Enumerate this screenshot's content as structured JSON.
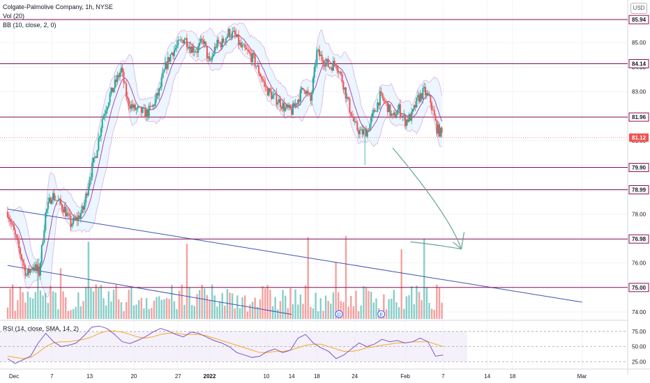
{
  "header": {
    "title": "Colgate-Palmolive Company, 1h, NYSE",
    "vol": "Vol (20)",
    "bb": "BB (10, close, 2, 0)"
  },
  "currency_button": "USD",
  "rsi_label": "RSI (14, close, SMA, 14, 2)",
  "colors": {
    "up": "#26a69a",
    "down": "#ef5350",
    "level_line": "#880e4f",
    "trendline": "#3f51b5",
    "arrow": "#5fa58e",
    "bb_band": "#e1bee7",
    "bb_fill": "#e3f2fd",
    "rsi_line": "#7e57c2",
    "rsi_sma": "#f9a825",
    "price_tag": "#ef5350"
  },
  "chart_data": {
    "type": "candlestick",
    "symbol": "Colgate-Palmolive Company",
    "interval": "1h",
    "exchange": "NYSE",
    "y_axis": {
      "range": [
        73.8,
        86.4
      ],
      "ticks": [
        "85.00",
        "84.00",
        "83.00",
        "82.00",
        "81.00",
        "80.00",
        "79.00",
        "78.00",
        "77.00",
        "76.00",
        "75.00",
        "74.00"
      ]
    },
    "x_axis": {
      "ticks": [
        {
          "label": "Dec",
          "day": 0
        },
        {
          "label": "7",
          "day": 6
        },
        {
          "label": "13",
          "day": 12
        },
        {
          "label": "20",
          "day": 19
        },
        {
          "label": "27",
          "day": 26
        },
        {
          "label": "2022",
          "day": 31
        },
        {
          "label": "10",
          "day": 40
        },
        {
          "label": "14",
          "day": 44
        },
        {
          "label": "18",
          "day": 48
        },
        {
          "label": "24",
          "day": 54
        },
        {
          "label": "Feb",
          "day": 62
        },
        {
          "label": "7",
          "day": 68
        },
        {
          "label": "14",
          "day": 75
        },
        {
          "label": "18",
          "day": 79
        },
        {
          "label": "Mar",
          "day": 90
        }
      ]
    },
    "horizontal_levels": [
      "85.94",
      "84.14",
      "81.96",
      "79.90",
      "78.99",
      "76.98",
      "75.00"
    ],
    "current_price": "81.12",
    "trendlines": [
      {
        "from": [
          -1,
          78.2
        ],
        "to": [
          90,
          74.4
        ]
      },
      {
        "from": [
          -1,
          75.9
        ],
        "to": [
          44,
          73.9
        ]
      }
    ],
    "arrow": {
      "from": [
        60,
        80.7
      ],
      "to": [
        70,
        77.7
      ],
      "tip": 76.8
    },
    "price_path": [
      {
        "day": -1,
        "close": 78.1
      },
      {
        "day": 1,
        "close": 76.4
      },
      {
        "day": 2,
        "close": 75.5
      },
      {
        "day": 3,
        "close": 75.9
      },
      {
        "day": 4,
        "close": 75.6
      },
      {
        "day": 5,
        "close": 78.0
      },
      {
        "day": 6,
        "close": 78.8
      },
      {
        "day": 8,
        "close": 78.2
      },
      {
        "day": 9,
        "close": 77.6
      },
      {
        "day": 10,
        "close": 77.8
      },
      {
        "day": 11,
        "close": 78.2
      },
      {
        "day": 12,
        "close": 79.5
      },
      {
        "day": 13,
        "close": 80.5
      },
      {
        "day": 14,
        "close": 81.9
      },
      {
        "day": 15,
        "close": 82.7
      },
      {
        "day": 16,
        "close": 83.3
      },
      {
        "day": 17,
        "close": 83.9
      },
      {
        "day": 18,
        "close": 82.6
      },
      {
        "day": 19,
        "close": 82.3
      },
      {
        "day": 20,
        "close": 82.2
      },
      {
        "day": 21,
        "close": 82.1
      },
      {
        "day": 22,
        "close": 82.4
      },
      {
        "day": 23,
        "close": 83.0
      },
      {
        "day": 24,
        "close": 84.0
      },
      {
        "day": 25,
        "close": 84.6
      },
      {
        "day": 26,
        "close": 84.9
      },
      {
        "day": 27,
        "close": 85.2
      },
      {
        "day": 28,
        "close": 84.8
      },
      {
        "day": 29,
        "close": 84.7
      },
      {
        "day": 30,
        "close": 85.1
      },
      {
        "day": 31,
        "close": 84.1
      },
      {
        "day": 32,
        "close": 84.9
      },
      {
        "day": 33,
        "close": 85.0
      },
      {
        "day": 34,
        "close": 85.4
      },
      {
        "day": 35,
        "close": 85.3
      },
      {
        "day": 36,
        "close": 84.8
      },
      {
        "day": 37,
        "close": 84.6
      },
      {
        "day": 38,
        "close": 84.3
      },
      {
        "day": 39,
        "close": 83.7
      },
      {
        "day": 40,
        "close": 83.1
      },
      {
        "day": 41,
        "close": 82.8
      },
      {
        "day": 42,
        "close": 82.6
      },
      {
        "day": 43,
        "close": 82.3
      },
      {
        "day": 44,
        "close": 82.2
      },
      {
        "day": 45,
        "close": 82.7
      },
      {
        "day": 46,
        "close": 83.2
      },
      {
        "day": 47,
        "close": 82.6
      },
      {
        "day": 48,
        "close": 84.6
      },
      {
        "day": 49,
        "close": 84.3
      },
      {
        "day": 50,
        "close": 84.0
      },
      {
        "day": 51,
        "close": 84.2
      },
      {
        "day": 52,
        "close": 83.5
      },
      {
        "day": 53,
        "close": 82.5
      },
      {
        "day": 54,
        "close": 81.6
      },
      {
        "day": 55,
        "close": 81.3
      },
      {
        "day": 56,
        "close": 81.4
      },
      {
        "day": 57,
        "close": 82.1
      },
      {
        "day": 58,
        "close": 82.8
      },
      {
        "day": 59,
        "close": 82.5
      },
      {
        "day": 60,
        "close": 81.9
      },
      {
        "day": 61,
        "close": 82.3
      },
      {
        "day": 62,
        "close": 81.8
      },
      {
        "day": 63,
        "close": 82.0
      },
      {
        "day": 64,
        "close": 82.7
      },
      {
        "day": 65,
        "close": 83.0
      },
      {
        "day": 66,
        "close": 82.6
      },
      {
        "day": 67,
        "close": 81.5
      },
      {
        "day": 68,
        "close": 81.2
      }
    ],
    "annotations": [
      "D",
      "E"
    ],
    "rsi": {
      "label": "RSI (14, close, SMA, 14, 2)",
      "ticks": [
        "75.00",
        "50.00",
        "25.00"
      ],
      "range": [
        15,
        90
      ],
      "rsi_values": [
        30,
        22,
        28,
        34,
        56,
        72,
        58,
        50,
        52,
        56,
        68,
        82,
        84,
        80,
        70,
        58,
        55,
        60,
        66,
        74,
        80,
        76,
        70,
        66,
        74,
        72,
        66,
        60,
        56,
        50,
        40,
        36,
        32,
        34,
        42,
        46,
        40,
        44,
        64,
        70,
        56,
        48,
        42,
        30,
        36,
        46,
        56,
        50,
        54,
        62,
        58,
        60,
        56,
        58,
        64,
        58,
        34,
        36
      ],
      "sma_values": [
        34,
        32,
        30,
        32,
        40,
        50,
        56,
        58,
        58,
        60,
        62,
        66,
        72,
        76,
        76,
        74,
        70,
        66,
        64,
        66,
        70,
        72,
        72,
        70,
        70,
        70,
        68,
        64,
        60,
        56,
        52,
        48,
        44,
        40,
        40,
        42,
        42,
        44,
        48,
        52,
        54,
        54,
        50,
        46,
        42,
        42,
        44,
        48,
        50,
        52,
        54,
        56,
        56,
        58,
        58,
        58,
        54,
        50
      ]
    }
  }
}
